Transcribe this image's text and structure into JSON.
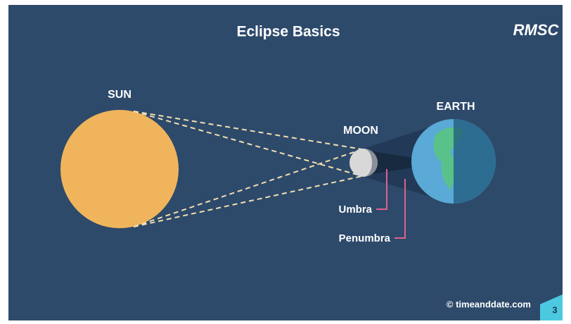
{
  "header": {
    "title": "Eclipse Basics",
    "logo": "RMSC"
  },
  "labels": {
    "sun": "SUN",
    "moon": "MOON",
    "earth": "EARTH",
    "umbra": "Umbra",
    "penumbra": "Penumbra"
  },
  "footer": {
    "credit": "© timeanddate.com",
    "page_number": "3"
  }
}
